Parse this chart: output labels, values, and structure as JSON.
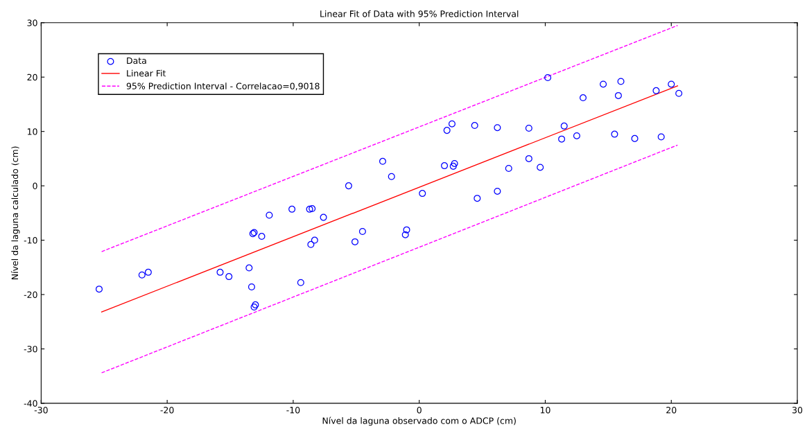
{
  "chart_data": {
    "type": "scatter",
    "title": "Linear Fit of Data with 95% Prediction Interval",
    "xlabel": "Nível da laguna observado com o ADCP (cm)",
    "ylabel": "Nível da laguna calculado (cm)",
    "xlim": [
      -30,
      30
    ],
    "xticks": [
      -30,
      -20,
      -10,
      0,
      10,
      20,
      30
    ],
    "ylim": [
      -40,
      30
    ],
    "yticks": [
      -40,
      -30,
      -20,
      -10,
      0,
      10,
      20,
      30
    ],
    "grid": false,
    "legend": "top left",
    "series": [
      {
        "name": "Data",
        "color": "#0000ff",
        "marker": "circle",
        "x": [
          -25.4,
          -22.0,
          -21.5,
          -15.8,
          -15.1,
          -13.5,
          -13.3,
          -13.1,
          -13.0,
          -13.2,
          -13.1,
          -12.5,
          -11.9,
          -10.1,
          -9.4,
          -8.7,
          -8.5,
          -8.6,
          -8.3,
          -7.6,
          -5.6,
          -5.1,
          -4.5,
          -2.9,
          -2.2,
          -1.1,
          -1.0,
          0.25,
          2.0,
          2.2,
          2.6,
          2.7,
          2.8,
          4.4,
          4.6,
          6.2,
          6.2,
          7.1,
          8.7,
          8.7,
          9.6,
          10.2,
          11.3,
          11.5,
          12.5,
          13.0,
          14.6,
          15.5,
          15.8,
          16.0,
          17.1,
          18.8,
          19.2,
          20.0,
          20.6
        ],
        "values": [
          -19.0,
          -16.4,
          -15.9,
          -15.9,
          -16.7,
          -15.1,
          -18.6,
          -22.3,
          -21.9,
          -8.8,
          -8.6,
          -9.3,
          -5.4,
          -4.3,
          -17.8,
          -4.3,
          -4.2,
          -10.8,
          -10.0,
          -5.8,
          0.0,
          -10.3,
          -8.4,
          4.5,
          1.7,
          -9.0,
          -8.1,
          -1.4,
          3.7,
          10.2,
          11.4,
          3.6,
          4.1,
          11.1,
          -2.3,
          10.7,
          -1.0,
          3.2,
          10.6,
          5.0,
          3.4,
          19.9,
          8.6,
          11.0,
          9.2,
          16.2,
          18.7,
          9.5,
          16.6,
          19.2,
          8.7,
          17.5,
          9.0,
          18.7,
          17.0
        ]
      },
      {
        "name": "Linear Fit",
        "type": "line",
        "color": "#ff0000",
        "line_style": "solid",
        "x": [
          -25.2,
          20.5
        ],
        "values": [
          -23.2,
          18.4
        ]
      },
      {
        "name": "95% Prediction Interval - Correlacao=0,9018",
        "type": "line",
        "color": "#ff00ff",
        "line_style": "dashed",
        "x": [
          -25.2,
          20.5
        ],
        "values": [
          -12.1,
          29.5
        ]
      },
      {
        "type": "line",
        "color": "#ff00ff",
        "line_style": "dashed",
        "x": [
          -25.2,
          20.5
        ],
        "values": [
          -34.4,
          7.5
        ]
      }
    ]
  }
}
